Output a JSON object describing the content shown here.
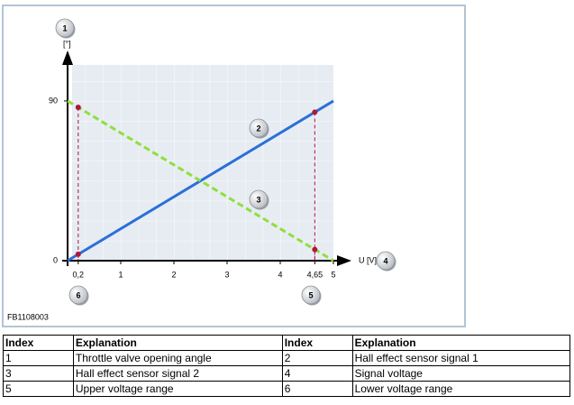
{
  "figure": {
    "chart_data": {
      "type": "line",
      "y_label": "[°]",
      "x_label": "U [V]",
      "xlim": [
        0,
        5
      ],
      "ylim": [
        0,
        110
      ],
      "xticks": [
        {
          "value": 0.2,
          "label": "0,2"
        },
        1,
        2,
        3,
        4,
        {
          "value": 4.65,
          "label": "4,65"
        },
        5
      ],
      "yticks": [
        0,
        90
      ],
      "series": [
        {
          "color": "#2c6fd8",
          "dashed": false,
          "x": [
            0,
            5
          ],
          "values": [
            0,
            90
          ]
        },
        {
          "color": "#8ee03a",
          "dashed": true,
          "x": [
            0,
            5
          ],
          "values": [
            90,
            0
          ]
        }
      ],
      "points": {
        "color": "#b0173a",
        "x": [
          0.2,
          0.2,
          4.65,
          4.65
        ],
        "values": [
          3.6,
          86.4,
          83.7,
          6.3
        ]
      }
    },
    "callouts": [
      "1",
      "2",
      "3",
      "4",
      "5",
      "6"
    ],
    "figure_id": "FB1108003"
  },
  "table": {
    "header": [
      "Index",
      "Explanation",
      "Index",
      "Explanation"
    ],
    "rows": [
      [
        "1",
        "Throttle valve opening angle",
        "2",
        "Hall effect sensor signal 1"
      ],
      [
        "3",
        "Hall effect sensor signal 2",
        "4",
        "Signal voltage"
      ],
      [
        "5",
        "Upper voltage range",
        "6",
        "Lower voltage range"
      ]
    ]
  }
}
